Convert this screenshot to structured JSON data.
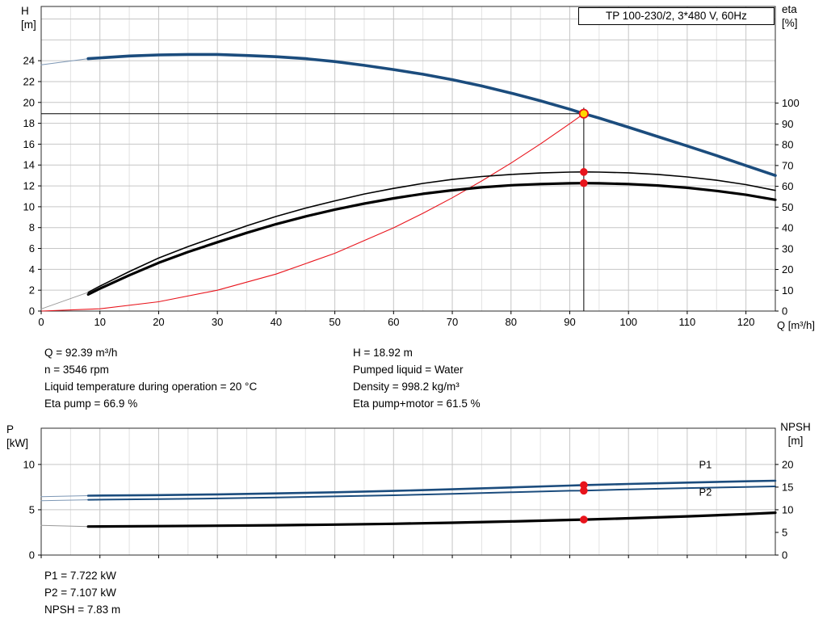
{
  "colors": {
    "curve_blue": "#1b4c7d",
    "label_blue": "#2a6099",
    "curve_red": "#e8141c",
    "curve_black": "#000000",
    "duty_yellow": "#ffd800",
    "grid_major": "#c6c6c6",
    "grid_minor": "#e2e2e2"
  },
  "info": {
    "left": [
      "Q = 92.39 m³/h",
      "n = 3546 rpm",
      "Liquid temperature during operation = 20 °C",
      "Eta pump = 66.9 %"
    ],
    "right": [
      "H = 18.92 m",
      "Pumped liquid = Water",
      "Density = 998.2 kg/m³",
      "Eta pump+motor = 61.5 %"
    ]
  },
  "results": [
    "P1 = 7.722 kW",
    "P2 = 7.107 kW",
    "NPSH = 7.83 m"
  ],
  "chart_data": [
    {
      "id": "top",
      "type": "line",
      "title": "TP 100-230/2, 3*480 V, 60Hz",
      "xlabel": "Q [m³/h]",
      "ylabel_left": "H\n[m]",
      "ylabel_right": "eta\n[%]",
      "xlim": [
        0,
        125
      ],
      "ylim_left": [
        0,
        29.2
      ],
      "ylim_right": [
        0,
        146.5
      ],
      "x_minor_step": 5,
      "x_ticks": [
        0,
        10,
        20,
        30,
        40,
        50,
        60,
        70,
        80,
        90,
        100,
        110,
        120
      ],
      "x_tick_labels": true,
      "y_ticks_left": [
        0,
        2,
        4,
        6,
        8,
        10,
        12,
        14,
        16,
        18,
        20,
        22,
        24
      ],
      "y_grid_left": [
        2,
        4,
        6,
        8,
        10,
        12,
        14,
        16,
        18,
        20,
        22,
        24,
        26,
        28
      ],
      "y_ticks_right": [
        0,
        10,
        20,
        30,
        40,
        50,
        60,
        70,
        80,
        90,
        100
      ],
      "duty_lines": {
        "q": 92.39,
        "h": 18.92,
        "v_top": 19.5
      },
      "series": [
        {
          "name": "head-curve-ext",
          "axis": "left",
          "color": "#7d97b5",
          "width": 1,
          "x": [
            0,
            8
          ],
          "y": [
            23.6,
            24.2
          ]
        },
        {
          "name": "system-curve",
          "axis": "left",
          "color": "#e8141c",
          "width": 1.1,
          "x": [
            0,
            10,
            20,
            30,
            40,
            50,
            60,
            65,
            70,
            75,
            80,
            85,
            90,
            92.39
          ],
          "y": [
            0,
            0.22,
            0.89,
            2.0,
            3.55,
            5.54,
            7.98,
            9.37,
            10.86,
            12.47,
            14.19,
            16.02,
            17.96,
            18.92
          ]
        },
        {
          "name": "head-curve",
          "axis": "left",
          "color": "#1b4c7d",
          "width": 3.6,
          "x": [
            8,
            15,
            20,
            25,
            30,
            35,
            40,
            45,
            50,
            55,
            60,
            65,
            70,
            75,
            80,
            85,
            90,
            92.39,
            95,
            100,
            105,
            110,
            115,
            120,
            125
          ],
          "y": [
            24.2,
            24.45,
            24.55,
            24.6,
            24.6,
            24.5,
            24.38,
            24.2,
            23.92,
            23.55,
            23.15,
            22.7,
            22.18,
            21.58,
            20.9,
            20.15,
            19.35,
            18.92,
            18.5,
            17.62,
            16.72,
            15.82,
            14.9,
            13.95,
            13.0
          ]
        },
        {
          "name": "eta-pump-ext",
          "axis": "right",
          "color": "#999999",
          "width": 0.9,
          "x": [
            0,
            8
          ],
          "y": [
            1,
            9
          ]
        },
        {
          "name": "eta-pump-curve",
          "axis": "right",
          "color": "#000000",
          "width": 1.6,
          "x": [
            8,
            10,
            15,
            20,
            25,
            30,
            35,
            40,
            45,
            50,
            55,
            60,
            65,
            70,
            75,
            80,
            85,
            90,
            92.39,
            95,
            100,
            105,
            110,
            115,
            120,
            125
          ],
          "y": [
            9,
            12,
            19,
            25.5,
            31,
            36,
            41,
            45.5,
            49.5,
            53,
            56.3,
            59,
            61.4,
            63.3,
            64.7,
            65.7,
            66.4,
            66.85,
            66.9,
            66.85,
            66.5,
            65.7,
            64.5,
            62.9,
            60.8,
            58
          ]
        },
        {
          "name": "eta-pump-motor-curve",
          "axis": "right",
          "color": "#000000",
          "width": 3.2,
          "x": [
            8,
            10,
            15,
            20,
            25,
            30,
            35,
            40,
            45,
            50,
            55,
            60,
            65,
            70,
            75,
            80,
            85,
            90,
            92.39,
            95,
            100,
            105,
            110,
            115,
            120,
            125
          ],
          "y": [
            8,
            10.8,
            17.2,
            23.2,
            28.4,
            33.1,
            37.6,
            41.8,
            45.5,
            48.8,
            51.7,
            54.2,
            56.4,
            58.1,
            59.5,
            60.5,
            61.1,
            61.45,
            61.5,
            61.45,
            61.1,
            60.4,
            59.3,
            57.8,
            55.9,
            53.5
          ]
        }
      ],
      "markers": [
        {
          "name": "eta-pump-duty-dot",
          "q": 92.39,
          "v": 66.9,
          "axis": "right",
          "r": 4.8,
          "fill": "#e8141c"
        },
        {
          "name": "eta-total-duty-dot",
          "q": 92.39,
          "v": 61.5,
          "axis": "right",
          "r": 4.8,
          "fill": "#e8141c"
        },
        {
          "name": "duty-point",
          "q": 92.39,
          "v": 18.92,
          "axis": "left",
          "r": 5.2,
          "fill": "#ffd800",
          "stroke": "#e8141c"
        }
      ],
      "annotations": []
    },
    {
      "id": "bottom",
      "type": "line",
      "title": "",
      "xlabel": "",
      "ylabel_left": "P\n[kW]",
      "ylabel_right": "NPSH\n[m]",
      "xlim": [
        0,
        125
      ],
      "ylim_left": [
        0,
        14
      ],
      "ylim_right": [
        0,
        28
      ],
      "x_minor_step": 5,
      "x_ticks": [
        0,
        10,
        20,
        30,
        40,
        50,
        60,
        70,
        80,
        90,
        100,
        110,
        120
      ],
      "x_tick_labels": false,
      "y_ticks_left": [
        0,
        5,
        10
      ],
      "y_grid_left": [
        5,
        10
      ],
      "y_ticks_right": [
        0,
        5,
        10,
        15,
        20
      ],
      "duty_lines": null,
      "series": [
        {
          "name": "p1-curve-ext",
          "axis": "left",
          "color": "#7d97b5",
          "width": 1,
          "x": [
            0,
            8
          ],
          "y": [
            6.45,
            6.55
          ]
        },
        {
          "name": "p2-curve-ext",
          "axis": "left",
          "color": "#7d97b5",
          "width": 1,
          "x": [
            0,
            8
          ],
          "y": [
            6.0,
            6.1
          ]
        },
        {
          "name": "npsh-curve-ext",
          "axis": "right",
          "color": "#999999",
          "width": 1,
          "x": [
            0,
            8
          ],
          "y": [
            6.55,
            6.3
          ]
        },
        {
          "name": "p1-curve",
          "axis": "left",
          "color": "#1b4c7d",
          "width": 2.6,
          "x": [
            8,
            20,
            30,
            40,
            50,
            60,
            70,
            80,
            90,
            92.39,
            100,
            110,
            120,
            125
          ],
          "y": [
            6.55,
            6.62,
            6.7,
            6.8,
            6.93,
            7.08,
            7.26,
            7.46,
            7.67,
            7.722,
            7.85,
            8.0,
            8.14,
            8.2
          ]
        },
        {
          "name": "p2-curve",
          "axis": "left",
          "color": "#1b4c7d",
          "width": 2.0,
          "x": [
            8,
            20,
            30,
            40,
            50,
            60,
            70,
            80,
            90,
            92.39,
            100,
            110,
            120,
            125
          ],
          "y": [
            6.1,
            6.17,
            6.25,
            6.35,
            6.47,
            6.6,
            6.76,
            6.93,
            7.1,
            7.107,
            7.25,
            7.39,
            7.52,
            7.58
          ]
        },
        {
          "name": "npsh-curve",
          "axis": "right",
          "color": "#000000",
          "width": 3.2,
          "x": [
            8,
            20,
            30,
            40,
            50,
            60,
            70,
            80,
            90,
            92.39,
            100,
            110,
            120,
            125
          ],
          "y": [
            6.3,
            6.38,
            6.47,
            6.58,
            6.72,
            6.9,
            7.13,
            7.42,
            7.76,
            7.83,
            8.12,
            8.55,
            9.05,
            9.35
          ]
        }
      ],
      "markers": [
        {
          "name": "p1-duty-dot",
          "q": 92.39,
          "v": 7.722,
          "axis": "left",
          "r": 4.8,
          "fill": "#e8141c"
        },
        {
          "name": "p2-duty-dot",
          "q": 92.39,
          "v": 7.107,
          "axis": "left",
          "r": 4.8,
          "fill": "#e8141c"
        },
        {
          "name": "npsh-duty-dot",
          "q": 92.39,
          "v": 7.83,
          "axis": "right",
          "r": 4.8,
          "fill": "#e8141c"
        }
      ],
      "annotations": [
        {
          "text": "P1",
          "q": 112,
          "v": 9.6,
          "axis": "left",
          "color": "#2a6099"
        },
        {
          "text": "P2",
          "q": 112,
          "v": 6.55,
          "axis": "left",
          "color": "#2a6099"
        }
      ]
    }
  ]
}
